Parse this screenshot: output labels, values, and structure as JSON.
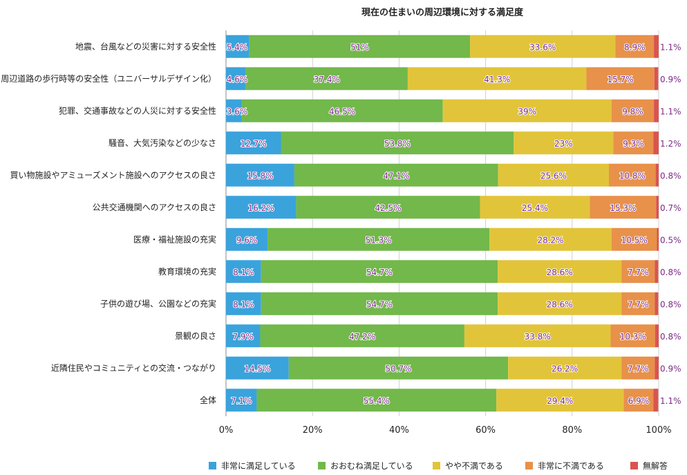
{
  "chart_data": {
    "type": "bar",
    "orientation": "horizontal-stacked",
    "title": "現在の住まいの周辺環境に対する満足度",
    "categories": [
      "地震、台風などの災害に対する安全性",
      "周辺道路の歩行時等の安全性（ユニバーサルデザイン化）",
      "犯罪、交通事故などの人災に対する安全性",
      "騒音、大気汚染などの少なさ",
      "買い物施設やアミューズメント施設へのアクセスの良さ",
      "公共交通機関へのアクセスの良さ",
      "医療・福祉施設の充実",
      "教育環境の充実",
      "子供の遊び場、公園などの充実",
      "景観の良さ",
      "近隣住民やコミュニティとの交流・つながり",
      "全体"
    ],
    "series": [
      {
        "name": "非常に満足している",
        "color": "#3aa3dc",
        "values": [
          5.4,
          4.6,
          3.6,
          12.7,
          15.8,
          16.2,
          9.6,
          8.1,
          8.1,
          7.9,
          14.5,
          7.1
        ],
        "labels": [
          "5.4%",
          "4.6%",
          "3.6%",
          "12.7%",
          "15.8%",
          "16.2%",
          "9.6%",
          "8.1%",
          "8.1%",
          "7.9%",
          "14.5%",
          "7.1%"
        ]
      },
      {
        "name": "おおむね満足している",
        "color": "#72b84b",
        "values": [
          51,
          37.4,
          46.5,
          53.8,
          47.1,
          42.5,
          51.3,
          54.7,
          54.7,
          47.2,
          50.7,
          55.4
        ],
        "labels": [
          "51%",
          "37.4%",
          "46.5%",
          "53.8%",
          "47.1%",
          "42.5%",
          "51.3%",
          "54.7%",
          "54.7%",
          "47.2%",
          "50.7%",
          "55.4%"
        ]
      },
      {
        "name": "やや不満である",
        "color": "#e2c43a",
        "values": [
          33.6,
          41.3,
          39,
          23,
          25.6,
          25.4,
          28.2,
          28.6,
          28.6,
          33.8,
          26.2,
          29.4
        ],
        "labels": [
          "33.6%",
          "41.3%",
          "39%",
          "23%",
          "25.6%",
          "25.4%",
          "28.2%",
          "28.6%",
          "28.6%",
          "33.8%",
          "26.2%",
          "29.4%"
        ]
      },
      {
        "name": "非常に不満である",
        "color": "#e8914a",
        "values": [
          8.9,
          15.7,
          9.8,
          9.3,
          10.8,
          15.3,
          10.5,
          7.7,
          7.7,
          10.3,
          7.7,
          6.9
        ],
        "labels": [
          "8.9%",
          "15.7%",
          "9.8%",
          "9.3%",
          "10.8%",
          "15.3%",
          "10.5%",
          "7.7%",
          "7.7%",
          "10.3%",
          "7.7%",
          "6.9%"
        ]
      },
      {
        "name": "無解答",
        "color": "#d9544f",
        "values": [
          1.1,
          0.9,
          1.1,
          1.2,
          0.8,
          0.7,
          0.5,
          0.8,
          0.8,
          0.8,
          0.9,
          1.1
        ],
        "labels": [
          "1.1%",
          "0.9%",
          "1.1%",
          "1.2%",
          "0.8%",
          "0.7%",
          "0.5%",
          "0.8%",
          "0.8%",
          "0.8%",
          "0.9%",
          "1.1%"
        ]
      }
    ],
    "xlim": [
      0,
      100
    ],
    "xticks": [
      "0%",
      "20%",
      "40%",
      "60%",
      "80%",
      "100%"
    ],
    "grid": true,
    "legend": "bottom"
  }
}
